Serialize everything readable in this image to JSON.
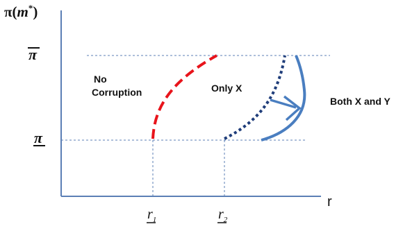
{
  "axes": {
    "y_label_prefix": "π(",
    "y_label_var": "m",
    "y_label_sup": "*",
    "y_label_suffix": ")",
    "x_label": "r",
    "y_tick_upper": "π",
    "y_tick_lower": "π",
    "x_tick_1": {
      "main": "r",
      "sub": "1"
    },
    "x_tick_2": {
      "main": "r",
      "sub": "2"
    }
  },
  "regions": {
    "no_corruption_line1": "No",
    "no_corruption_line2": "Corruption",
    "only_x": "Only X",
    "both_x_and_y": "Both X and Y"
  },
  "colors": {
    "axis": "#5b7fb5",
    "guide": "#5b7fb5",
    "red_curve": "#e8141b",
    "navy_curve": "#1f3d7a",
    "blue_curve": "#4a7ec0",
    "text": "#111111"
  }
}
